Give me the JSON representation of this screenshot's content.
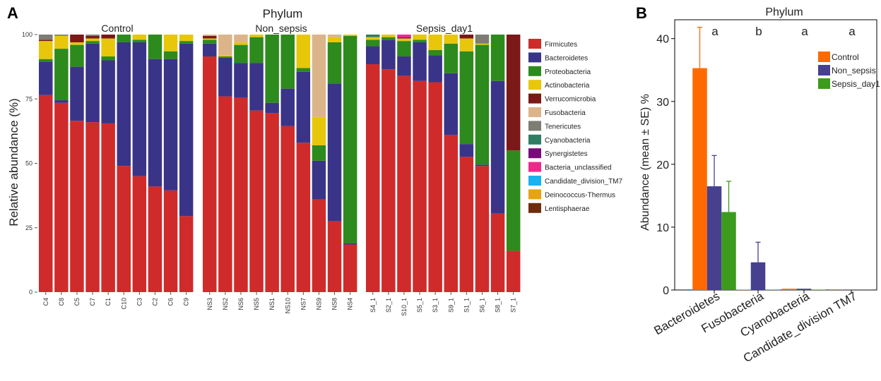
{
  "panel_labels": {
    "a": "A",
    "b": "B"
  },
  "panel_a": {
    "title": "Phylum",
    "ylabel": "Relative abundance (%)",
    "legend_items": [
      {
        "label": "Firmicutes",
        "color": "#cf2b2b"
      },
      {
        "label": "Bacteroidetes",
        "color": "#3a3488"
      },
      {
        "label": "Proteobacteria",
        "color": "#2d8a1d"
      },
      {
        "label": "Actinobacteria",
        "color": "#e8c60a"
      },
      {
        "label": "Verrucomicrobia",
        "color": "#7b1818"
      },
      {
        "label": "Fusobacteria",
        "color": "#dcb48a"
      },
      {
        "label": "Tenericutes",
        "color": "#7d7d73"
      },
      {
        "label": "Cyanobacteria",
        "color": "#2f7d63"
      },
      {
        "label": "Synergistetes",
        "color": "#7a0a7a"
      },
      {
        "label": "Bacteria_unclassified",
        "color": "#f0288c"
      },
      {
        "label": "Candidate_division_TM7",
        "color": "#1ab2f0"
      },
      {
        "label": "Deinococcus-Thermus",
        "color": "#e8a312"
      },
      {
        "label": "Lentisphaerae",
        "color": "#6e2d0a"
      }
    ]
  },
  "panel_b": {
    "title": "Phylum",
    "ylabel": "Abundance (mean ± SE) %",
    "legend_items": [
      {
        "label": "Control",
        "color": "#ff6a00"
      },
      {
        "label": "Non_sepsis",
        "color": "#46408f"
      },
      {
        "label": "Sepsis_day1",
        "color": "#3c9a1c"
      }
    ]
  },
  "chart_data": [
    {
      "type": "bar",
      "stacked": true,
      "title": "Phylum",
      "ylabel": "Relative abundance (%)",
      "ylim": [
        0,
        100
      ],
      "yticks": [
        "0",
        "25",
        "50",
        "75",
        "100"
      ],
      "series_names": [
        "Firmicutes",
        "Bacteroidetes",
        "Proteobacteria",
        "Actinobacteria",
        "Verrucomicrobia",
        "Fusobacteria",
        "Tenericutes",
        "Cyanobacteria",
        "Synergistetes",
        "Bacteria_unclassified",
        "Candidate_division_TM7",
        "Deinococcus-Thermus",
        "Lentisphaerae"
      ],
      "groups": [
        {
          "name": "Control",
          "samples": [
            {
              "label": "C4",
              "values": [
                76.5,
                13,
                1,
                7,
                0.5,
                0,
                2,
                0,
                0,
                0,
                0,
                0,
                0
              ]
            },
            {
              "label": "C8",
              "values": [
                73.5,
                1,
                20,
                5,
                0,
                0,
                0.5,
                0,
                0,
                0,
                0,
                0,
                0
              ]
            },
            {
              "label": "C5",
              "values": [
                66.5,
                21,
                8.5,
                1,
                3,
                0,
                0,
                0,
                0,
                0,
                0,
                0,
                0
              ]
            },
            {
              "label": "C7",
              "values": [
                66,
                30.5,
                1,
                1,
                1,
                0,
                0.5,
                0,
                0,
                0,
                0,
                0,
                0
              ]
            },
            {
              "label": "C1",
              "values": [
                65.5,
                24.5,
                1.5,
                7,
                1.5,
                0,
                0,
                0,
                0,
                0,
                0,
                0,
                0
              ]
            },
            {
              "label": "C10",
              "values": [
                49,
                48,
                3,
                0,
                0,
                0,
                0,
                0,
                0,
                0,
                0,
                0,
                0
              ]
            },
            {
              "label": "C3",
              "values": [
                45,
                52,
                1,
                2,
                0,
                0,
                0,
                0,
                0,
                0,
                0,
                0,
                0
              ]
            },
            {
              "label": "C2",
              "values": [
                41,
                49.5,
                9.5,
                0,
                0,
                0,
                0,
                0,
                0,
                0,
                0,
                0,
                0
              ]
            },
            {
              "label": "C6",
              "values": [
                39.5,
                51,
                3,
                6.5,
                0,
                0,
                0,
                0,
                0,
                0,
                0,
                0,
                0
              ]
            },
            {
              "label": "C9",
              "values": [
                29.5,
                67,
                1,
                2.5,
                0,
                0,
                0,
                0,
                0,
                0,
                0,
                0,
                0
              ]
            }
          ]
        },
        {
          "name": "Non_sepsis",
          "samples": [
            {
              "label": "NS3",
              "values": [
                91.5,
                5,
                1.5,
                0.5,
                1,
                0.5,
                0,
                0,
                0,
                0,
                0,
                0,
                0
              ]
            },
            {
              "label": "NS2",
              "values": [
                76,
                15,
                0.5,
                0.5,
                0,
                8,
                0,
                0,
                0,
                0,
                0,
                0,
                0
              ]
            },
            {
              "label": "NS6",
              "values": [
                75.5,
                13.5,
                7,
                1,
                0,
                3,
                0,
                0,
                0,
                0,
                0,
                0,
                0
              ]
            },
            {
              "label": "NS5",
              "values": [
                70.5,
                18.5,
                10,
                1,
                0,
                0,
                0,
                0,
                0,
                0,
                0,
                0,
                0
              ]
            },
            {
              "label": "NS1",
              "values": [
                69.5,
                4,
                26.5,
                0,
                0,
                0,
                0,
                0,
                0,
                0,
                0,
                0,
                0
              ]
            },
            {
              "label": "NS10",
              "values": [
                64.5,
                14.5,
                21,
                0,
                0,
                0,
                0,
                0,
                0,
                0,
                0,
                0,
                0
              ]
            },
            {
              "label": "NS7",
              "values": [
                58,
                27.5,
                1.5,
                13,
                0,
                0,
                0,
                0,
                0,
                0,
                0,
                0,
                0
              ]
            },
            {
              "label": "NS9",
              "values": [
                36,
                15,
                6,
                11,
                0,
                32,
                0,
                0,
                0,
                0,
                0,
                0,
                0
              ]
            },
            {
              "label": "NS8",
              "values": [
                27.5,
                53.5,
                16,
                2,
                0,
                1,
                0,
                0,
                0,
                0,
                0,
                0,
                0
              ]
            },
            {
              "label": "NS4",
              "values": [
                18.5,
                0.5,
                80.5,
                0.5,
                0,
                0,
                0,
                0,
                0,
                0,
                0,
                0,
                0
              ]
            }
          ]
        },
        {
          "name": "Sepsis_day1",
          "samples": [
            {
              "label": "S4_1",
              "values": [
                88.5,
                7,
                2.5,
                1,
                0,
                0,
                0,
                1,
                0,
                0,
                0,
                0,
                0
              ]
            },
            {
              "label": "S2_1",
              "values": [
                86.5,
                11.5,
                1,
                1,
                0,
                0,
                0,
                0,
                0,
                0,
                0,
                0,
                0
              ]
            },
            {
              "label": "S10_1",
              "values": [
                84,
                7.5,
                6,
                1,
                0,
                0,
                0,
                0,
                0.5,
                1,
                0,
                0,
                0
              ]
            },
            {
              "label": "S5_1",
              "values": [
                82,
                15,
                1,
                2,
                0,
                0,
                0,
                0,
                0,
                0,
                0,
                0,
                0
              ]
            },
            {
              "label": "S3_1",
              "values": [
                81.5,
                10.5,
                2,
                6,
                0,
                0,
                0,
                0,
                0,
                0,
                0,
                0,
                0
              ]
            },
            {
              "label": "S9_1",
              "values": [
                61,
                24,
                11.5,
                3.5,
                0,
                0,
                0,
                0,
                0,
                0,
                0,
                0,
                0
              ]
            },
            {
              "label": "S1_1",
              "values": [
                52.5,
                5,
                36,
                5,
                1.5,
                0,
                0,
                0,
                0,
                0,
                0,
                0,
                0
              ]
            },
            {
              "label": "S6_1",
              "values": [
                49,
                0.5,
                46.5,
                0.5,
                0,
                0,
                3.5,
                0,
                0,
                0,
                0,
                0,
                0
              ]
            },
            {
              "label": "S8_1",
              "values": [
                30.5,
                51.5,
                18,
                0,
                0,
                0,
                0,
                0,
                0,
                0,
                0,
                0,
                0
              ]
            },
            {
              "label": "S7_1",
              "values": [
                16,
                0,
                39,
                0,
                45,
                0,
                0,
                0,
                0,
                0,
                0,
                0,
                0
              ]
            }
          ]
        }
      ]
    },
    {
      "type": "bar",
      "title": "Phylum",
      "ylabel": "Abundance (mean ± SE) %",
      "ylim": [
        0,
        43
      ],
      "yticks": [
        0,
        10,
        20,
        30,
        40
      ],
      "categories": [
        "Bacteroidetes",
        "Fusobacteria",
        "Cyanobacteria",
        "Candidate_division TM7"
      ],
      "significance_letters": [
        "a",
        "b",
        "a",
        "a"
      ],
      "series": [
        {
          "name": "Control",
          "values": [
            35.3,
            0.05,
            0.2,
            0.02
          ],
          "se": [
            6.5,
            0,
            0,
            0
          ]
        },
        {
          "name": "Non_sepsis",
          "values": [
            16.5,
            4.4,
            0.2,
            0.02
          ],
          "se": [
            4.9,
            3.2,
            0,
            0
          ]
        },
        {
          "name": "Sepsis_day1",
          "values": [
            12.4,
            0.05,
            0.05,
            0.01
          ],
          "se": [
            4.9,
            0,
            0,
            0
          ]
        }
      ]
    }
  ]
}
